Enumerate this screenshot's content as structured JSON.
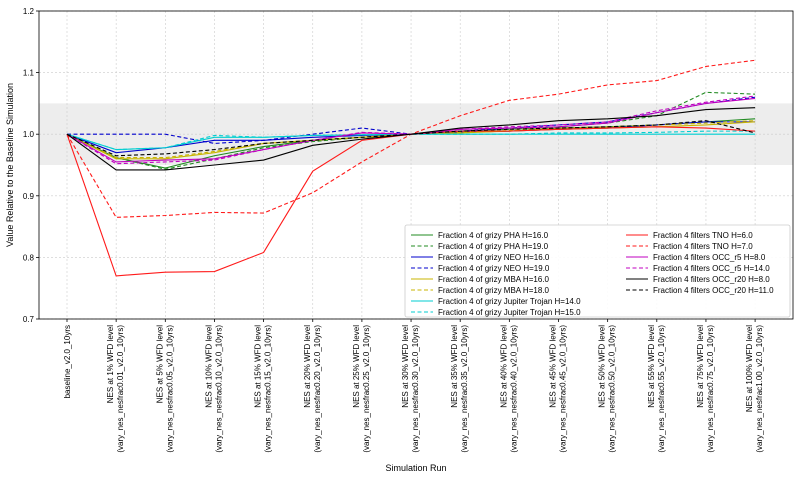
{
  "chart_data": {
    "type": "line",
    "xlabel": "Simulation Run",
    "ylabel": "Value Relative to the Baseline Simulation",
    "ylim": [
      0.7,
      1.2
    ],
    "yticks": [
      0.7,
      0.8,
      0.9,
      1.0,
      1.1,
      1.2
    ],
    "ytick_labels": [
      "0.7",
      "0.8",
      "0.9",
      "1.0",
      "1.1",
      "1.2"
    ],
    "grid": true,
    "band": [
      0.95,
      1.05
    ],
    "legend_position": "lower-right",
    "categories": [
      [
        "baseline_v2.0_10yrs",
        ""
      ],
      [
        "NES at 1% WFD level",
        "(vary_nes_nesfrac0.01_v2.0_10yrs)"
      ],
      [
        "NES at 5% WFD level",
        "(vary_nes_nesfrac0.05_v2.0_10yrs)"
      ],
      [
        "NES at 10% WFD level",
        "(vary_nes_nesfrac0.10_v2.0_10yrs)"
      ],
      [
        "NES at 15% WFD level",
        "(vary_nes_nesfrac0.15_v2.0_10yrs)"
      ],
      [
        "NES at 20% WFD level",
        "(vary_nes_nesfrac0.20_v2.0_10yrs)"
      ],
      [
        "NES at 25% WFD level",
        "(vary_nes_nesfrac0.25_v2.0_10yrs)"
      ],
      [
        "NES at 30% WFD level",
        "(vary_nes_nesfrac0.30_v2.0_10yrs)"
      ],
      [
        "NES at 35% WFD level",
        "(vary_nes_nesfrac0.35_v2.0_10yrs)"
      ],
      [
        "NES at 40% WFD level",
        "(vary_nes_nesfrac0.40_v2.0_10yrs)"
      ],
      [
        "NES at 45% WFD level",
        "(vary_nes_nesfrac0.45_v2.0_10yrs)"
      ],
      [
        "NES at 50% WFD level",
        "(vary_nes_nesfrac0.50_v2.0_10yrs)"
      ],
      [
        "NES at 55% WFD level",
        "(vary_nes_nesfrac0.55_v2.0_10yrs)"
      ],
      [
        "NES at 75% WFD level",
        "(vary_nes_nesfrac0.75_v2.0_10yrs)"
      ],
      [
        "NES at 100% WFD level",
        "(vary_nes_nesfrac1.00_v2.0_10yrs)"
      ]
    ],
    "series": [
      {
        "name": "Fraction 4 of grizy PHA H=16.0",
        "color": "#228b22",
        "dash": false,
        "values": [
          1.0,
          0.962,
          0.945,
          0.965,
          0.98,
          0.99,
          0.995,
          1.0,
          1.003,
          1.005,
          1.01,
          1.012,
          1.015,
          1.02,
          1.025
        ]
      },
      {
        "name": "Fraction 4 of grizy PHA H=19.0",
        "color": "#228b22",
        "dash": true,
        "values": [
          1.0,
          0.962,
          0.943,
          0.96,
          0.978,
          0.988,
          0.995,
          1.0,
          1.005,
          1.008,
          1.012,
          1.018,
          1.03,
          1.068,
          1.065
        ]
      },
      {
        "name": "Fraction 4 of grizy NEO H=16.0",
        "color": "#0000cd",
        "dash": false,
        "values": [
          1.0,
          0.97,
          0.978,
          0.99,
          0.99,
          0.995,
          0.998,
          1.0,
          1.003,
          1.005,
          1.008,
          1.01,
          1.015,
          1.02,
          1.02
        ]
      },
      {
        "name": "Fraction 4 of grizy NEO H=19.0",
        "color": "#0000cd",
        "dash": true,
        "values": [
          1.0,
          1.0,
          1.0,
          0.985,
          0.99,
          1.0,
          1.01,
          1.0,
          1.005,
          1.01,
          1.015,
          1.02,
          1.035,
          1.05,
          1.06
        ]
      },
      {
        "name": "Fraction 4 of grizy MBA H=16.0",
        "color": "#c8b400",
        "dash": false,
        "values": [
          1.0,
          0.96,
          0.96,
          0.97,
          0.985,
          0.99,
          0.995,
          1.0,
          1.002,
          1.005,
          1.008,
          1.01,
          1.012,
          1.015,
          1.02
        ]
      },
      {
        "name": "Fraction 4 of grizy MBA H=18.0",
        "color": "#c8b400",
        "dash": true,
        "values": [
          1.0,
          0.962,
          0.962,
          0.972,
          0.985,
          0.99,
          0.995,
          1.0,
          1.003,
          1.006,
          1.01,
          1.012,
          1.015,
          1.018,
          1.022
        ]
      },
      {
        "name": "Fraction 4 of grizy Jupiter Trojan H=14.0",
        "color": "#00ced1",
        "dash": false,
        "values": [
          1.0,
          0.975,
          0.978,
          0.995,
          0.995,
          0.998,
          0.999,
          1.0,
          1.0,
          1.0,
          1.0,
          1.0,
          1.0,
          1.0,
          1.0
        ]
      },
      {
        "name": "Fraction 4 of grizy Jupiter Trojan H=15.0",
        "color": "#00ced1",
        "dash": true,
        "values": [
          1.0,
          0.975,
          0.978,
          0.998,
          0.995,
          0.998,
          0.999,
          1.0,
          1.0,
          1.0,
          1.002,
          1.002,
          1.003,
          1.005,
          1.005
        ]
      },
      {
        "name": "Fraction 4 filters TNO H=6.0",
        "color": "#ff1a1a",
        "dash": false,
        "values": [
          1.0,
          0.77,
          0.776,
          0.777,
          0.808,
          0.94,
          0.99,
          1.0,
          1.005,
          1.005,
          1.008,
          1.01,
          1.012,
          1.01,
          1.005
        ]
      },
      {
        "name": "Fraction 4 filters TNO H=7.0",
        "color": "#ff1a1a",
        "dash": true,
        "values": [
          1.0,
          0.865,
          0.868,
          0.873,
          0.872,
          0.905,
          0.955,
          1.0,
          1.03,
          1.055,
          1.065,
          1.08,
          1.087,
          1.11,
          1.12
        ]
      },
      {
        "name": "Fraction 4 filters OCC_r5 H=8.0",
        "color": "#c000c0",
        "dash": false,
        "values": [
          1.0,
          0.955,
          0.958,
          0.96,
          0.975,
          0.99,
          1.002,
          1.0,
          1.008,
          1.01,
          1.012,
          1.018,
          1.035,
          1.05,
          1.058
        ]
      },
      {
        "name": "Fraction 4 filters OCC_r5 H=14.0",
        "color": "#c000c0",
        "dash": true,
        "values": [
          1.0,
          0.952,
          0.955,
          0.958,
          0.975,
          0.99,
          1.003,
          1.0,
          1.008,
          1.012,
          1.015,
          1.02,
          1.038,
          1.052,
          1.062
        ]
      },
      {
        "name": "Fraction 4 filters OCC_r20 H=8.0",
        "color": "#000000",
        "dash": false,
        "values": [
          1.0,
          0.942,
          0.942,
          0.95,
          0.958,
          0.982,
          0.992,
          1.0,
          1.01,
          1.015,
          1.022,
          1.025,
          1.03,
          1.04,
          1.043
        ]
      },
      {
        "name": "Fraction 4 filters OCC_r20 H=11.0",
        "color": "#000000",
        "dash": true,
        "values": [
          1.0,
          0.965,
          0.968,
          0.975,
          0.985,
          0.99,
          0.995,
          1.0,
          1.005,
          1.008,
          1.01,
          1.012,
          1.015,
          1.022,
          1.002
        ]
      }
    ]
  }
}
